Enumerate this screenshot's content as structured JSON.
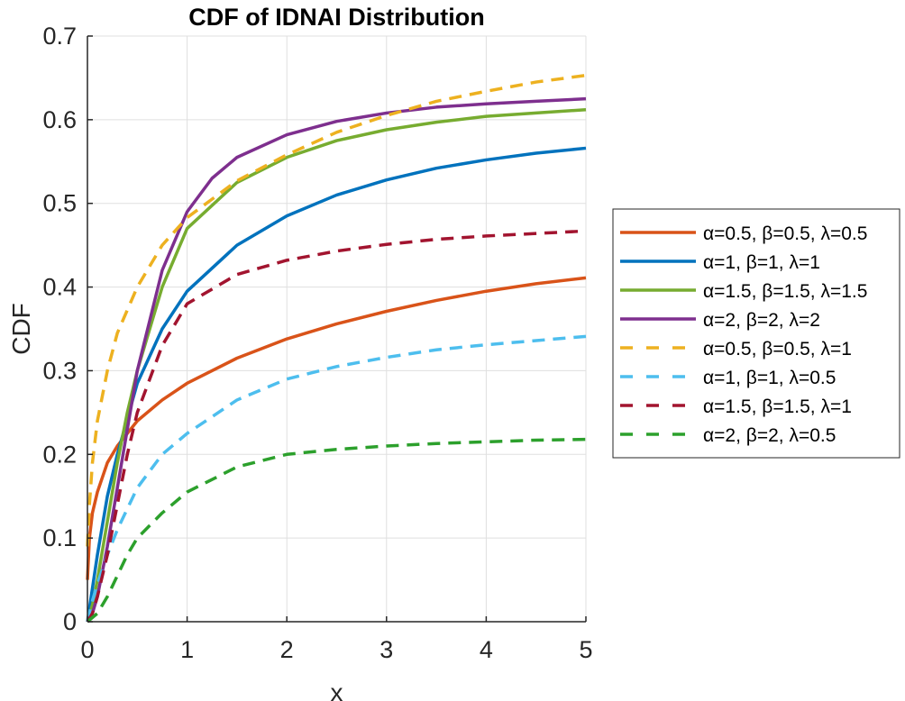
{
  "chart_data": {
    "type": "line",
    "title": "CDF of IDNAI Distribution",
    "xlabel": "x",
    "ylabel": "CDF",
    "xlim": [
      0,
      5
    ],
    "ylim": [
      0,
      0.7
    ],
    "xticks": [
      0,
      1,
      2,
      3,
      4,
      5
    ],
    "xtick_labels": [
      "0",
      "1",
      "2",
      "3",
      "4",
      "5"
    ],
    "yticks": [
      0,
      0.1,
      0.2,
      0.3,
      0.4,
      0.5,
      0.6,
      0.7
    ],
    "ytick_labels": [
      "0",
      "0.1",
      "0.2",
      "0.3",
      "0.4",
      "0.5",
      "0.6",
      "0.7"
    ],
    "grid": true,
    "legend_position": "outside-right",
    "series": [
      {
        "name": "α=0.5, β=0.5, λ=0.5",
        "color": "#D95319",
        "style": "solid",
        "x": [
          0,
          0.02,
          0.05,
          0.1,
          0.2,
          0.3,
          0.5,
          0.75,
          1,
          1.5,
          2,
          2.5,
          3,
          3.5,
          4,
          4.5,
          5
        ],
        "y": [
          0.05,
          0.1,
          0.13,
          0.155,
          0.19,
          0.21,
          0.24,
          0.265,
          0.285,
          0.315,
          0.338,
          0.356,
          0.371,
          0.384,
          0.395,
          0.404,
          0.411
        ]
      },
      {
        "name": "α=1, β=1, λ=1",
        "color": "#0072BD",
        "style": "solid",
        "x": [
          0,
          0.05,
          0.1,
          0.2,
          0.3,
          0.5,
          0.75,
          1,
          1.5,
          2,
          2.5,
          3,
          3.5,
          4,
          4.5,
          5
        ],
        "y": [
          0,
          0.04,
          0.08,
          0.15,
          0.2,
          0.285,
          0.35,
          0.395,
          0.45,
          0.485,
          0.51,
          0.528,
          0.542,
          0.552,
          0.56,
          0.566
        ]
      },
      {
        "name": "α=1.5, β=1.5, λ=1.5",
        "color": "#77AC30",
        "style": "solid",
        "x": [
          0,
          0.05,
          0.1,
          0.2,
          0.3,
          0.4,
          0.5,
          0.75,
          1,
          1.5,
          2,
          2.5,
          3,
          3.5,
          4,
          4.5,
          5
        ],
        "y": [
          0,
          0.02,
          0.05,
          0.12,
          0.19,
          0.25,
          0.3,
          0.4,
          0.47,
          0.525,
          0.555,
          0.575,
          0.588,
          0.597,
          0.604,
          0.608,
          0.612
        ]
      },
      {
        "name": "α=2, β=2, λ=2",
        "color": "#7E2F8E",
        "style": "solid",
        "x": [
          0,
          0.05,
          0.1,
          0.2,
          0.3,
          0.4,
          0.5,
          0.75,
          1,
          1.25,
          1.5,
          2,
          2.5,
          3,
          3.5,
          4,
          4.5,
          5
        ],
        "y": [
          0,
          0.01,
          0.03,
          0.09,
          0.16,
          0.23,
          0.3,
          0.42,
          0.49,
          0.53,
          0.555,
          0.582,
          0.598,
          0.608,
          0.615,
          0.619,
          0.622,
          0.625
        ]
      },
      {
        "name": "α=0.5, β=0.5, λ=1",
        "color": "#EDB120",
        "style": "dashed",
        "x": [
          0,
          0.02,
          0.05,
          0.1,
          0.2,
          0.3,
          0.5,
          0.75,
          1,
          1.5,
          2,
          2.5,
          3,
          3.5,
          4,
          4.5,
          5
        ],
        "y": [
          0.09,
          0.14,
          0.19,
          0.24,
          0.3,
          0.345,
          0.4,
          0.45,
          0.483,
          0.527,
          0.558,
          0.585,
          0.605,
          0.622,
          0.634,
          0.645,
          0.653
        ]
      },
      {
        "name": "α=1, β=1, λ=0.5",
        "color": "#4DBEEE",
        "style": "dashed",
        "x": [
          0,
          0.05,
          0.1,
          0.2,
          0.3,
          0.5,
          0.75,
          1,
          1.5,
          2,
          2.5,
          3,
          3.5,
          4,
          4.5,
          5
        ],
        "y": [
          0,
          0.025,
          0.045,
          0.08,
          0.11,
          0.16,
          0.2,
          0.225,
          0.265,
          0.29,
          0.305,
          0.316,
          0.325,
          0.331,
          0.336,
          0.341
        ]
      },
      {
        "name": "α=1.5, β=1.5, λ=1",
        "color": "#A2142F",
        "style": "dashed",
        "x": [
          0,
          0.05,
          0.1,
          0.2,
          0.3,
          0.4,
          0.5,
          0.75,
          1,
          1.5,
          2,
          2.5,
          3,
          3.5,
          4,
          4.5,
          5
        ],
        "y": [
          0,
          0.01,
          0.03,
          0.08,
          0.14,
          0.2,
          0.25,
          0.33,
          0.38,
          0.415,
          0.432,
          0.443,
          0.451,
          0.457,
          0.461,
          0.464,
          0.467
        ]
      },
      {
        "name": "α=2, β=2, λ=0.5",
        "color": "#2CA02C",
        "style": "dashed",
        "x": [
          0,
          0.1,
          0.2,
          0.3,
          0.4,
          0.5,
          0.75,
          1,
          1.5,
          2,
          2.5,
          3,
          3.5,
          4,
          4.5,
          5
        ],
        "y": [
          0,
          0.01,
          0.03,
          0.055,
          0.08,
          0.1,
          0.13,
          0.155,
          0.185,
          0.2,
          0.206,
          0.21,
          0.213,
          0.215,
          0.217,
          0.218
        ]
      }
    ]
  }
}
